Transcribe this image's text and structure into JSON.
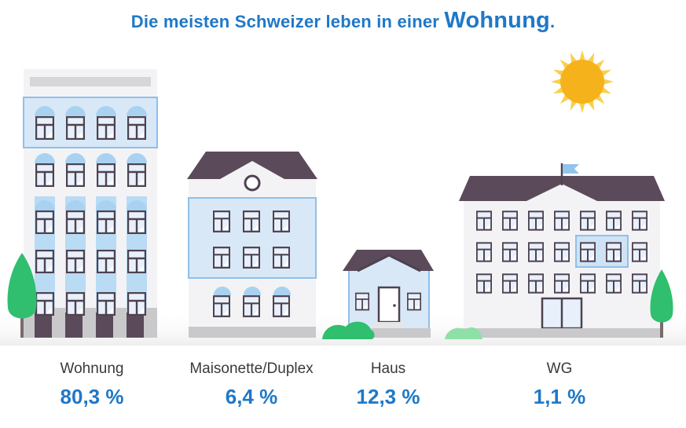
{
  "title": {
    "prefix": "Die meisten Schweizer leben in einer ",
    "emphasis": "Wohnung",
    "suffix": "."
  },
  "categories": [
    {
      "label": "Wohnung",
      "value": "80,3 %"
    },
    {
      "label": "Maisonette/Duplex",
      "value": "6,4 %"
    },
    {
      "label": "Haus",
      "value": "12,3 %"
    },
    {
      "label": "WG",
      "value": "1,1 %"
    }
  ],
  "colors": {
    "accent_blue": "#1f78c8",
    "roof": "#5b4b5a",
    "wall": "#f2f2f4",
    "glass": "#dbe9f7",
    "frame_blue": "#92c4ec",
    "tree_green": "#2fbf6e",
    "sun": "#f6b21a"
  },
  "icons": [
    "sun-icon",
    "flag-icon",
    "tree-icon",
    "bush-icon"
  ]
}
